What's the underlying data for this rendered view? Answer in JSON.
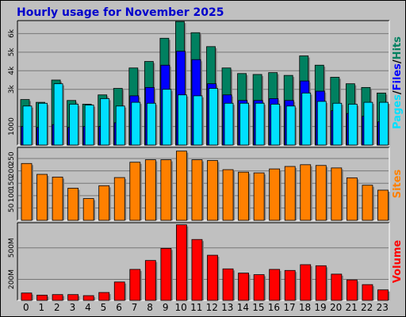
{
  "title": "Hourly usage for November 2025",
  "colors": {
    "background": "#c0c0c0",
    "plot_bg": "#c0c0c0",
    "grid": "#777777",
    "hits": "#008060",
    "files": "#0000ff",
    "pages": "#00e0ff",
    "sites": "#ff8000",
    "volume": "#ff0000"
  },
  "chart_data": [
    {
      "type": "bar",
      "name": "hits-files-pages",
      "side_label_parts": [
        "Pages",
        "/",
        "Files",
        "/",
        "Hits"
      ],
      "y_ticks": [
        "1000",
        "3k",
        "4k",
        "5k",
        "6k"
      ],
      "y_tick_values": [
        1000,
        3000,
        4000,
        5000,
        6000
      ],
      "ylim": [
        0,
        6700
      ],
      "categories": [
        "0",
        "1",
        "2",
        "3",
        "4",
        "5",
        "6",
        "7",
        "8",
        "9",
        "10",
        "11",
        "12",
        "13",
        "14",
        "15",
        "16",
        "17",
        "18",
        "19",
        "20",
        "21",
        "22",
        "23"
      ],
      "series": [
        {
          "name": "Hits",
          "values": [
            2450,
            2300,
            3500,
            2400,
            2200,
            2700,
            3050,
            4150,
            4500,
            5750,
            6650,
            6050,
            5300,
            4150,
            3850,
            3800,
            3900,
            3750,
            4800,
            4300,
            3650,
            3300,
            3100,
            2800
          ]
        },
        {
          "name": "Files",
          "values": [
            1000,
            950,
            1100,
            950,
            1000,
            1000,
            1200,
            2650,
            3100,
            4300,
            5050,
            4600,
            3300,
            2700,
            2400,
            2400,
            2500,
            2400,
            3450,
            2900,
            1850,
            1700,
            1550,
            1250
          ]
        },
        {
          "name": "Pages",
          "values": [
            2100,
            2250,
            3300,
            2200,
            2150,
            2500,
            2100,
            2300,
            2250,
            3000,
            2700,
            2650,
            3050,
            2250,
            2250,
            2250,
            2200,
            2100,
            2800,
            2350,
            2250,
            2200,
            2300,
            2300
          ]
        }
      ]
    },
    {
      "type": "bar",
      "name": "sites",
      "side_label": "Sites",
      "y_ticks": [
        "50",
        "100",
        "150",
        "200",
        "250"
      ],
      "y_tick_values": [
        50,
        100,
        150,
        200,
        250
      ],
      "ylim": [
        0,
        295
      ],
      "categories": [
        "0",
        "1",
        "2",
        "3",
        "4",
        "5",
        "6",
        "7",
        "8",
        "9",
        "10",
        "11",
        "12",
        "13",
        "14",
        "15",
        "16",
        "17",
        "18",
        "19",
        "20",
        "21",
        "22",
        "23"
      ],
      "series": [
        {
          "name": "Sites",
          "values": [
            230,
            186,
            175,
            130,
            88,
            140,
            173,
            235,
            245,
            245,
            280,
            245,
            242,
            205,
            195,
            192,
            208,
            218,
            225,
            222,
            212,
            172,
            142,
            122
          ]
        }
      ]
    },
    {
      "type": "bar",
      "name": "volume",
      "side_label": "Volume",
      "y_ticks": [
        "200M",
        "500M"
      ],
      "y_tick_values": [
        200,
        500
      ],
      "ylim": [
        0,
        740
      ],
      "categories": [
        "0",
        "1",
        "2",
        "3",
        "4",
        "5",
        "6",
        "7",
        "8",
        "9",
        "10",
        "11",
        "12",
        "13",
        "14",
        "15",
        "16",
        "17",
        "18",
        "19",
        "20",
        "21",
        "22",
        "23"
      ],
      "series": [
        {
          "name": "Volume",
          "values": [
            70,
            50,
            55,
            55,
            45,
            75,
            175,
            295,
            380,
            495,
            720,
            580,
            430,
            300,
            260,
            245,
            295,
            285,
            340,
            330,
            250,
            195,
            150,
            100
          ]
        }
      ]
    }
  ]
}
